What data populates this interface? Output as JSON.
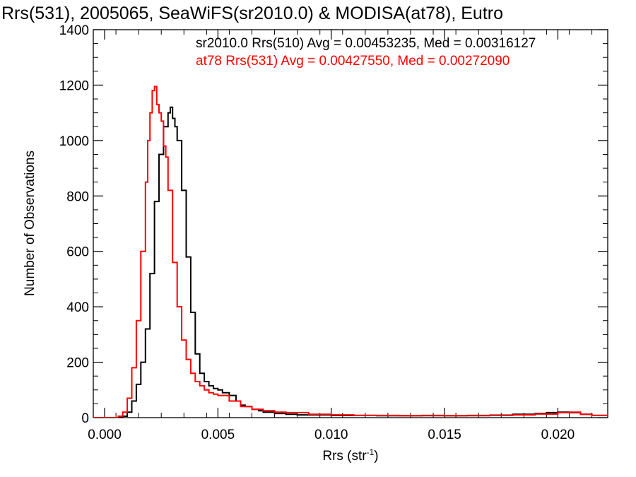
{
  "chart_data": {
    "type": "line",
    "title": "Rrs(531), 2005065, SeaWiFS(sr2010.0) & MODISA(at78), Eutro",
    "xlabel": "Rrs (str",
    "xlabel_sup": "-1",
    "xlabel_close": ")",
    "ylabel": "Number of Observations",
    "xlim": [
      -0.0005,
      0.0222
    ],
    "ylim": [
      0,
      1400
    ],
    "x_ticks": [
      0.0,
      0.005,
      0.01,
      0.015,
      0.02
    ],
    "x_tick_labels": [
      "0.000",
      "0.005",
      "0.010",
      "0.015",
      "0.020"
    ],
    "y_ticks": [
      0,
      200,
      400,
      600,
      800,
      1000,
      1200,
      1400
    ],
    "y_tick_labels": [
      "0",
      "200",
      "400",
      "600",
      "800",
      "1000",
      "1200",
      "1400"
    ],
    "grid": false,
    "legend_position": "top-right",
    "series": [
      {
        "name": "sr2010.0 Rrs(510) Avg = 0.00453235, Med = 0.00316127",
        "color": "#000000",
        "x": [
          -0.0005,
          0.0008,
          0.001,
          0.0012,
          0.0014,
          0.0016,
          0.0018,
          0.002,
          0.0022,
          0.0024,
          0.0026,
          0.0028,
          0.0029,
          0.003,
          0.0031,
          0.0032,
          0.0034,
          0.0036,
          0.0038,
          0.004,
          0.0042,
          0.0044,
          0.0046,
          0.0048,
          0.005,
          0.0052,
          0.0055,
          0.0058,
          0.006,
          0.0062,
          0.0065,
          0.0068,
          0.007,
          0.0075,
          0.008,
          0.0085,
          0.009,
          0.01,
          0.011,
          0.012,
          0.013,
          0.014,
          0.015,
          0.016,
          0.017,
          0.018,
          0.019,
          0.0195,
          0.02,
          0.0205,
          0.021,
          0.0215,
          0.0222
        ],
        "y": [
          0,
          5,
          20,
          60,
          120,
          200,
          320,
          520,
          780,
          950,
          1050,
          1100,
          1120,
          1080,
          1050,
          1000,
          820,
          580,
          380,
          230,
          160,
          130,
          115,
          105,
          100,
          90,
          80,
          60,
          45,
          40,
          30,
          25,
          20,
          15,
          12,
          10,
          10,
          8,
          8,
          7,
          7,
          8,
          7,
          8,
          9,
          12,
          15,
          18,
          20,
          18,
          12,
          8,
          5
        ]
      },
      {
        "name": "at78 Rrs(531) Avg = 0.00427550, Med = 0.00272090",
        "color": "#ff0000",
        "x": [
          -0.0005,
          0.0006,
          0.0008,
          0.001,
          0.0012,
          0.0014,
          0.0016,
          0.0018,
          0.0019,
          0.002,
          0.0021,
          0.0022,
          0.0023,
          0.0024,
          0.0025,
          0.0026,
          0.0027,
          0.0028,
          0.003,
          0.0032,
          0.0034,
          0.0036,
          0.0038,
          0.004,
          0.0042,
          0.0044,
          0.0046,
          0.0048,
          0.005,
          0.0055,
          0.006,
          0.0065,
          0.007,
          0.0075,
          0.008,
          0.009,
          0.01,
          0.011,
          0.012,
          0.013,
          0.014,
          0.015,
          0.016,
          0.017,
          0.018,
          0.019,
          0.02,
          0.0205,
          0.021,
          0.0215,
          0.0222
        ],
        "y": [
          0,
          5,
          20,
          70,
          180,
          350,
          600,
          850,
          1000,
          1100,
          1180,
          1195,
          1130,
          1100,
          1070,
          980,
          940,
          820,
          560,
          400,
          280,
          210,
          160,
          130,
          115,
          100,
          90,
          85,
          80,
          60,
          40,
          30,
          25,
          20,
          18,
          12,
          10,
          8,
          8,
          7,
          7,
          7,
          7,
          8,
          10,
          13,
          18,
          20,
          12,
          8,
          5
        ]
      }
    ]
  }
}
